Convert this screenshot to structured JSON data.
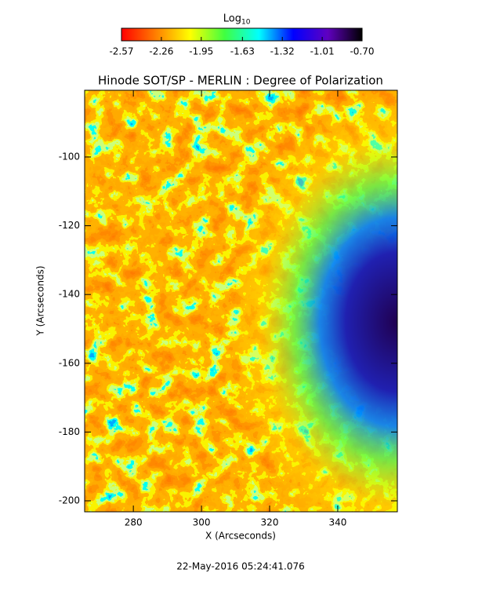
{
  "chart_data": {
    "type": "heatmap",
    "title": "Hinode SOT/SP - MERLIN : Degree of Polarization",
    "x_label": "X (Arcseconds)",
    "y_label": "Y (Arcseconds)",
    "xlim": [
      265.7,
      357.5
    ],
    "xticks": [
      280,
      300,
      320,
      340
    ],
    "ylim": [
      -203.2,
      -80.6
    ],
    "yticks": [
      -200,
      -180,
      -160,
      -140,
      -120,
      -100
    ],
    "colorbar": {
      "label": "Log",
      "label_sub": "10",
      "lim": [
        -2.57,
        -0.7
      ],
      "ticks": [
        -2.57,
        -2.26,
        -1.95,
        -1.63,
        -1.32,
        -1.01,
        {
          "value": -0.7,
          "label": "-0.70"
        }
      ],
      "colormap": [
        "#ff0000",
        "#ff7f00",
        "#ffff00",
        "#40ff40",
        "#00ffff",
        "#0000ff",
        "#6000c0",
        "#000000"
      ]
    },
    "footer": "22-May-2016 05:24:41.076"
  }
}
